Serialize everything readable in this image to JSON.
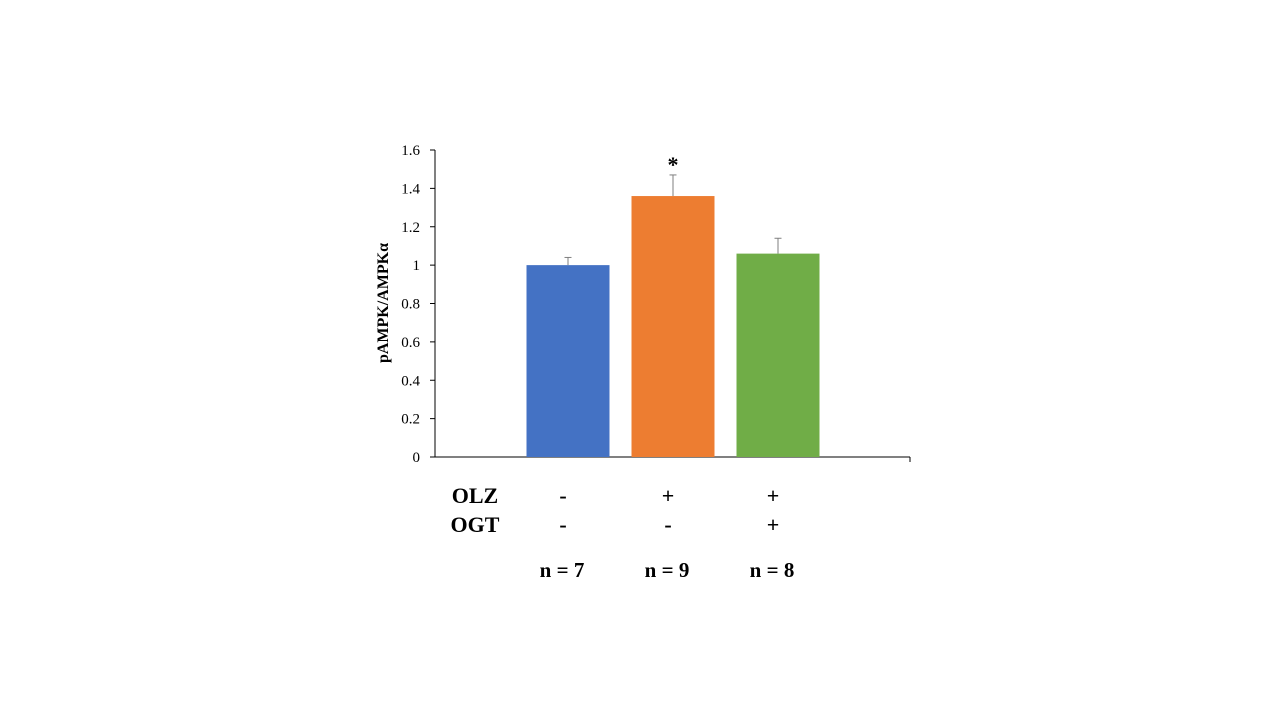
{
  "chart_data": {
    "type": "bar",
    "ylabel": "pAMPK/AMPKα",
    "ylim": [
      0,
      1.6
    ],
    "yticks": [
      0,
      0.2,
      0.4,
      0.6,
      0.8,
      1,
      1.2,
      1.4,
      1.6
    ],
    "ytick_labels": [
      "0",
      "0.2",
      "0.4",
      "0.6",
      "0.8",
      "1",
      "1.2",
      "1.4",
      "1.6"
    ],
    "categories": [
      "-/-",
      "+/-",
      "+/+"
    ],
    "values": [
      1.0,
      1.36,
      1.06
    ],
    "errors": [
      0.04,
      0.11,
      0.08
    ],
    "colors": [
      "#4472C4",
      "#ED7D31",
      "#70AD47"
    ],
    "annotations": [
      "",
      "*",
      ""
    ],
    "grid": false
  },
  "conditions": {
    "rows": [
      {
        "label": "OLZ",
        "signs": [
          "-",
          "+",
          "+"
        ]
      },
      {
        "label": "OGT",
        "signs": [
          "-",
          "-",
          "+"
        ]
      }
    ],
    "n_labels": [
      "n = 7",
      "n = 9",
      "n = 8"
    ]
  }
}
